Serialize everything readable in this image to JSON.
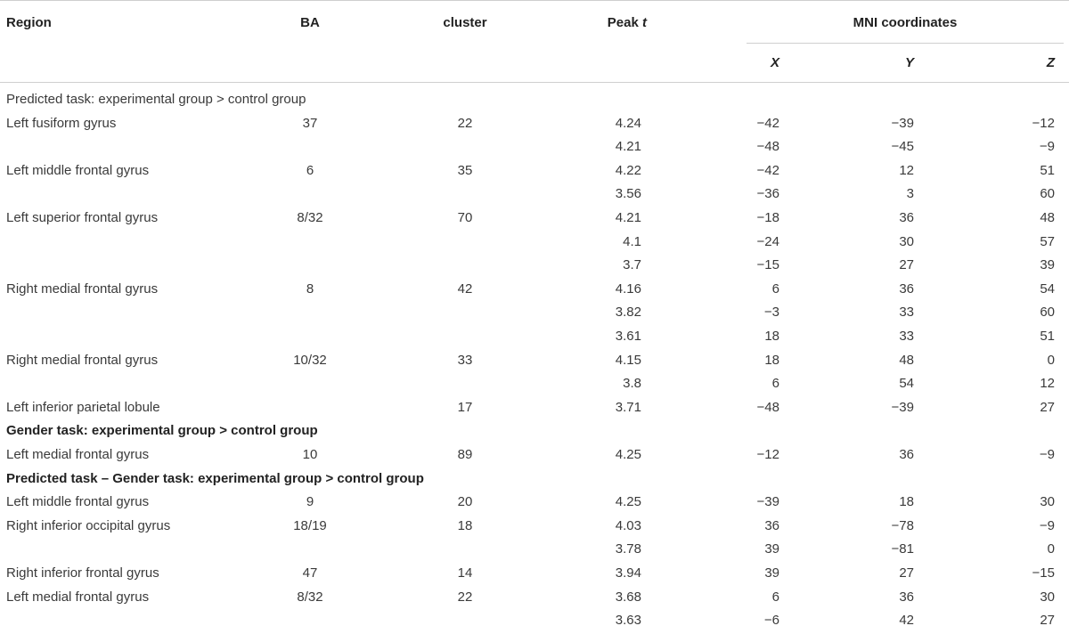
{
  "header": {
    "region": "Region",
    "ba": "BA",
    "cluster": "cluster",
    "peak_t_prefix": "Peak ",
    "peak_t_var": "t",
    "mni": "MNI coordinates",
    "x": "X",
    "y": "Y",
    "z": "Z"
  },
  "rows": [
    {
      "type": "section",
      "bold": false,
      "label": "Predicted task: experimental group > control group"
    },
    {
      "region": "Left fusiform gyrus",
      "ba": "37",
      "cluster": "22",
      "peak": "4.24",
      "x": "−42",
      "y": "−39",
      "z": "−12"
    },
    {
      "region": "",
      "ba": "",
      "cluster": "",
      "peak": "4.21",
      "x": "−48",
      "y": "−45",
      "z": "−9"
    },
    {
      "region": "Left middle frontal gyrus",
      "ba": "6",
      "cluster": "35",
      "peak": "4.22",
      "x": "−42",
      "y": "12",
      "z": "51"
    },
    {
      "region": "",
      "ba": "",
      "cluster": "",
      "peak": "3.56",
      "x": "−36",
      "y": "3",
      "z": "60"
    },
    {
      "region": "Left superior frontal gyrus",
      "ba": "8/32",
      "cluster": "70",
      "peak": "4.21",
      "x": "−18",
      "y": "36",
      "z": "48"
    },
    {
      "region": "",
      "ba": "",
      "cluster": "",
      "peak": "4.1",
      "x": "−24",
      "y": "30",
      "z": "57"
    },
    {
      "region": "",
      "ba": "",
      "cluster": "",
      "peak": "3.7",
      "x": "−15",
      "y": "27",
      "z": "39"
    },
    {
      "region": "Right medial frontal gyrus",
      "ba": "8",
      "cluster": "42",
      "peak": "4.16",
      "x": "6",
      "y": "36",
      "z": "54"
    },
    {
      "region": "",
      "ba": "",
      "cluster": "",
      "peak": "3.82",
      "x": "−3",
      "y": "33",
      "z": "60"
    },
    {
      "region": "",
      "ba": "",
      "cluster": "",
      "peak": "3.61",
      "x": "18",
      "y": "33",
      "z": "51"
    },
    {
      "region": "Right medial frontal gyrus",
      "ba": "10/32",
      "cluster": "33",
      "peak": "4.15",
      "x": "18",
      "y": "48",
      "z": "0"
    },
    {
      "region": "",
      "ba": "",
      "cluster": "",
      "peak": "3.8",
      "x": "6",
      "y": "54",
      "z": "12"
    },
    {
      "region": "Left inferior parietal lobule",
      "ba": "",
      "cluster": "17",
      "peak": "3.71",
      "x": "−48",
      "y": "−39",
      "z": "27"
    },
    {
      "type": "section",
      "bold": true,
      "label": "Gender task: experimental group > control group"
    },
    {
      "region": "Left medial frontal gyrus",
      "ba": "10",
      "cluster": "89",
      "peak": "4.25",
      "x": "−12",
      "y": "36",
      "z": "−9"
    },
    {
      "type": "section",
      "bold": true,
      "label": "Predicted task – Gender task: experimental group > control group"
    },
    {
      "region": "Left middle frontal gyrus",
      "ba": "9",
      "cluster": "20",
      "peak": "4.25",
      "x": "−39",
      "y": "18",
      "z": "30"
    },
    {
      "region": "Right inferior occipital gyrus",
      "ba": "18/19",
      "cluster": "18",
      "peak": "4.03",
      "x": "36",
      "y": "−78",
      "z": "−9"
    },
    {
      "region": "",
      "ba": "",
      "cluster": "",
      "peak": "3.78",
      "x": "39",
      "y": "−81",
      "z": "0"
    },
    {
      "region": "Right inferior frontal gyrus",
      "ba": "47",
      "cluster": "14",
      "peak": "3.94",
      "x": "39",
      "y": "27",
      "z": "−15"
    },
    {
      "region": "Left medial frontal gyrus",
      "ba": "8/32",
      "cluster": "22",
      "peak": "3.68",
      "x": "6",
      "y": "36",
      "z": "30"
    },
    {
      "region": "",
      "ba": "",
      "cluster": "",
      "peak": "3.63",
      "x": "−6",
      "y": "42",
      "z": "27"
    }
  ]
}
